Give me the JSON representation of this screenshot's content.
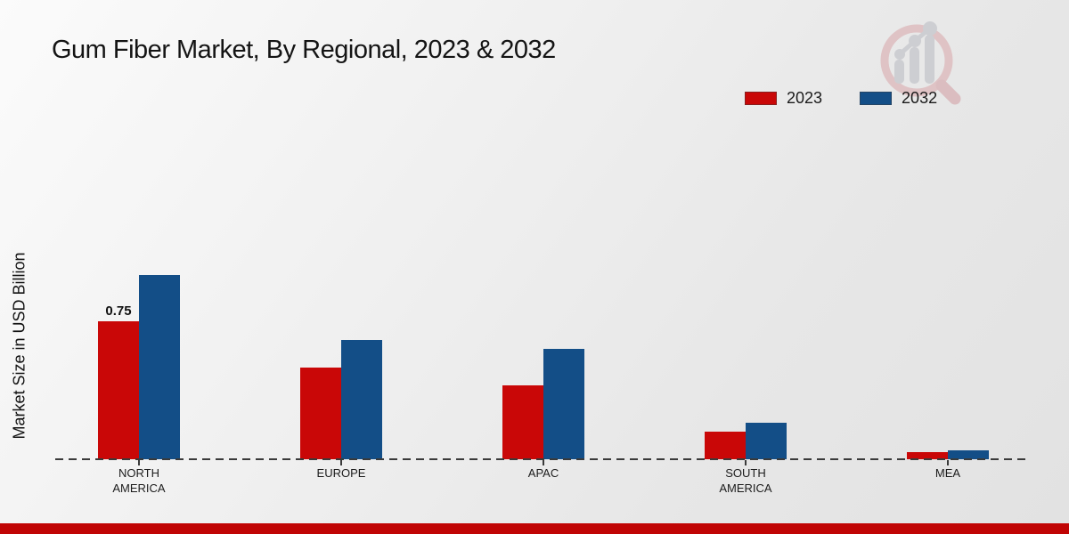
{
  "title": "Gum Fiber Market, By Regional, 2023 & 2032",
  "y_axis_label": "Market Size in USD Billion",
  "legend": [
    {
      "label": "2023",
      "color": "#c90707"
    },
    {
      "label": "2032",
      "color": "#134e87"
    }
  ],
  "chart_data": {
    "type": "bar",
    "title": "Gum Fiber Market, By Regional, 2023 & 2032",
    "ylabel": "Market Size in USD Billion",
    "categories": [
      "NORTH AMERICA",
      "EUROPE",
      "APAC",
      "SOUTH AMERICA",
      "MEA"
    ],
    "series": [
      {
        "name": "2023",
        "color": "#c90707",
        "values": [
          0.75,
          0.5,
          0.4,
          0.15,
          0.04
        ]
      },
      {
        "name": "2032",
        "color": "#134e87",
        "values": [
          1.0,
          0.65,
          0.6,
          0.2,
          0.05
        ]
      }
    ],
    "annotations": [
      {
        "text": "0.75",
        "category": "NORTH AMERICA",
        "series": "2023"
      }
    ],
    "ylim": [
      0,
      1.1
    ],
    "grid": false,
    "legend_position": "top-right",
    "baseline_style": "dashed"
  },
  "footer": {
    "bar_color": "#c00404"
  },
  "watermark": {
    "name": "magnifier-bar-chart-logo"
  }
}
